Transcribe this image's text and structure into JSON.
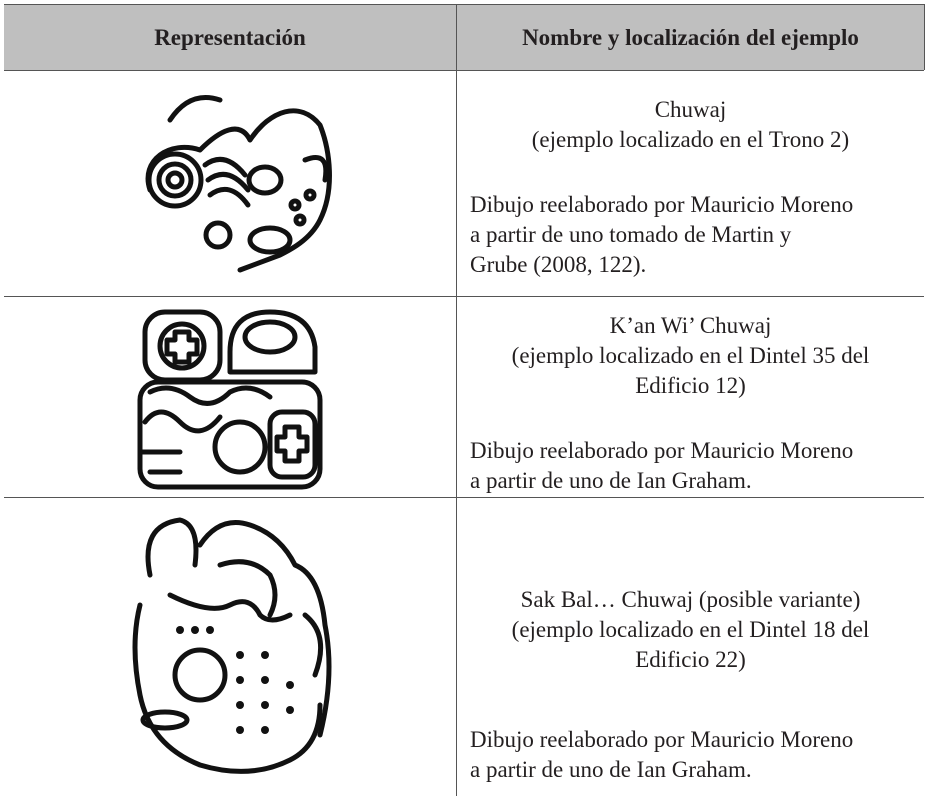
{
  "table": {
    "header": [
      "Representación",
      "Nombre y localización del ejemplo"
    ],
    "rows": [
      {
        "name": [
          "Chuwaj",
          "(ejemplo localizado en el Trono 2)"
        ],
        "credit": [
          "Dibujo reelaborado por Mauricio Moreno",
          "a partir de uno tomado de Martin y",
          "Grube (2008, 122)."
        ]
      },
      {
        "name": [
          "K’an Wi’ Chuwaj",
          "(ejemplo localizado en el Dintel 35 del",
          "Edificio 12)"
        ],
        "credit": [
          "Dibujo reelaborado por Mauricio Moreno",
          "a partir de uno de Ian Graham."
        ]
      },
      {
        "name": [
          "Sak Bal… Chuwaj (posible variante)",
          "(ejemplo localizado en el Dintel 18 del",
          "Edificio 22)"
        ],
        "credit": [
          "Dibujo reelaborado por Mauricio Moreno",
          "a partir de uno de Ian Graham."
        ]
      }
    ]
  }
}
